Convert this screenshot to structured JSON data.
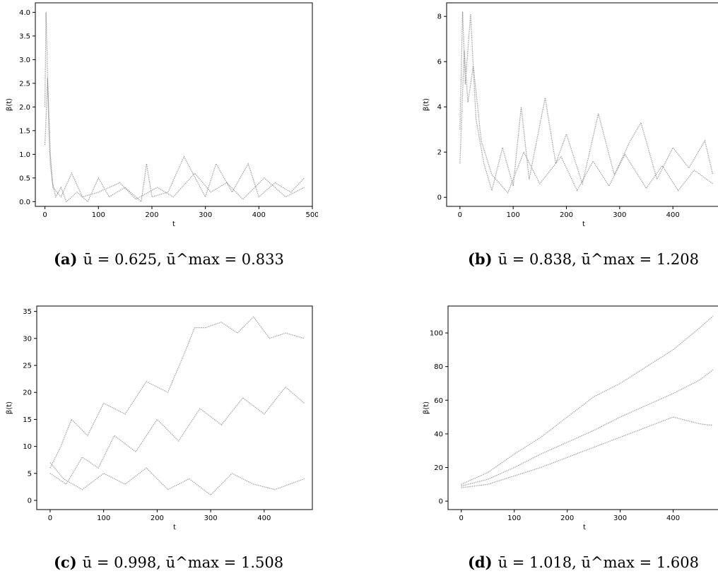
{
  "chart_data": [
    {
      "id": "a",
      "type": "line",
      "caption": {
        "tag": "(a)",
        "text": "ū = 0.625, ū^max = 0.833"
      },
      "xlabel": "t",
      "ylabel": "β(t)",
      "xlim": [
        -18,
        500
      ],
      "ylim": [
        -0.1,
        4.2
      ],
      "xticks": [
        0,
        100,
        200,
        300,
        400,
        500
      ],
      "yticks": [
        0.0,
        0.5,
        1.0,
        1.5,
        2.0,
        2.5,
        3.0,
        3.5,
        4.0
      ],
      "ytick_decimals": 1,
      "series": [
        {
          "t": [
            0,
            2,
            4,
            6,
            8,
            10,
            14,
            20,
            30,
            40,
            60,
            80,
            100,
            120,
            150,
            180,
            190,
            200,
            230,
            260,
            300,
            320,
            350,
            380,
            400,
            430,
            460,
            485
          ],
          "y": [
            2.0,
            4.0,
            3.1,
            2.0,
            1.3,
            0.8,
            0.4,
            0.1,
            0.3,
            0.0,
            0.2,
            0.0,
            0.5,
            0.1,
            0.3,
            0.0,
            0.8,
            0.1,
            0.2,
            0.95,
            0.1,
            0.8,
            0.2,
            0.8,
            0.1,
            0.4,
            0.2,
            0.5
          ]
        },
        {
          "t": [
            0,
            5,
            10,
            15,
            30,
            50,
            70,
            100,
            140,
            170,
            210,
            240,
            280,
            310,
            340,
            370,
            410,
            450,
            485
          ],
          "y": [
            1.2,
            2.6,
            1.0,
            0.3,
            0.1,
            0.6,
            0.1,
            0.2,
            0.4,
            0.05,
            0.3,
            0.1,
            0.6,
            0.2,
            0.4,
            0.05,
            0.5,
            0.1,
            0.3
          ]
        }
      ]
    },
    {
      "id": "b",
      "type": "line",
      "caption": {
        "tag": "(b)",
        "text": "ū = 0.838, ū^max = 1.208"
      },
      "xlabel": "t",
      "ylabel": "β(t)",
      "xlim": [
        -25,
        490
      ],
      "ylim": [
        -0.4,
        8.6
      ],
      "xticks": [
        0,
        100,
        200,
        300,
        400
      ],
      "yticks": [
        0,
        2,
        4,
        6,
        8
      ],
      "ytick_decimals": 0,
      "series": [
        {
          "t": [
            0,
            5,
            10,
            20,
            30,
            45,
            60,
            80,
            100,
            115,
            130,
            160,
            180,
            200,
            230,
            260,
            290,
            320,
            340,
            370,
            400,
            430,
            460,
            475
          ],
          "y": [
            3.0,
            8.2,
            5.0,
            8.1,
            3.5,
            1.5,
            0.3,
            2.2,
            0.5,
            4.0,
            0.8,
            4.4,
            1.5,
            2.8,
            0.6,
            3.7,
            1.0,
            2.5,
            3.3,
            0.8,
            2.2,
            1.3,
            2.5,
            1.0
          ]
        },
        {
          "t": [
            0,
            8,
            15,
            25,
            40,
            60,
            90,
            120,
            150,
            190,
            220,
            250,
            280,
            310,
            350,
            380,
            410,
            440,
            475
          ],
          "y": [
            1.5,
            6.5,
            4.2,
            5.8,
            2.5,
            1.0,
            0.2,
            2.0,
            0.6,
            1.8,
            0.3,
            1.6,
            0.5,
            1.9,
            0.4,
            1.4,
            0.3,
            1.2,
            0.6
          ]
        }
      ]
    },
    {
      "id": "c",
      "type": "line",
      "caption": {
        "tag": "(c)",
        "text": "ū = 0.998, ū^max = 1.508"
      },
      "xlabel": "t",
      "ylabel": "β(t)",
      "xlim": [
        -25,
        490
      ],
      "ylim": [
        -1.7,
        36
      ],
      "xticks": [
        0,
        100,
        200,
        300,
        400
      ],
      "yticks": [
        0,
        5,
        10,
        15,
        20,
        25,
        30,
        35
      ],
      "ytick_decimals": 0,
      "series": [
        {
          "t": [
            0,
            20,
            40,
            70,
            100,
            140,
            180,
            220,
            250,
            270,
            290,
            320,
            350,
            380,
            410,
            440,
            475
          ],
          "y": [
            6,
            10,
            15,
            12,
            18,
            16,
            22,
            20,
            27,
            32,
            32,
            33,
            31,
            34,
            30,
            31,
            30
          ]
        },
        {
          "t": [
            0,
            30,
            60,
            90,
            120,
            160,
            200,
            240,
            280,
            320,
            360,
            400,
            440,
            475
          ],
          "y": [
            5,
            3,
            8,
            6,
            12,
            9,
            15,
            11,
            17,
            14,
            19,
            16,
            21,
            18
          ]
        },
        {
          "t": [
            0,
            25,
            60,
            100,
            140,
            180,
            220,
            260,
            300,
            340,
            380,
            420,
            475
          ],
          "y": [
            7,
            4,
            2,
            5,
            3,
            6,
            2,
            4,
            1,
            5,
            3,
            2,
            4
          ]
        }
      ]
    },
    {
      "id": "d",
      "type": "line",
      "caption": {
        "tag": "(d)",
        "text": "ū = 1.018, ū^max = 1.608"
      },
      "xlabel": "t",
      "ylabel": "β(t)",
      "xlim": [
        -25,
        490
      ],
      "ylim": [
        -5,
        116
      ],
      "xticks": [
        0,
        100,
        200,
        300,
        400
      ],
      "yticks": [
        0,
        20,
        40,
        60,
        80,
        100
      ],
      "ytick_decimals": 0,
      "series": [
        {
          "t": [
            0,
            50,
            100,
            150,
            200,
            250,
            300,
            350,
            400,
            450,
            475
          ],
          "y": [
            10,
            17,
            28,
            38,
            50,
            62,
            70,
            80,
            90,
            103,
            110
          ]
        },
        {
          "t": [
            0,
            50,
            100,
            150,
            200,
            250,
            300,
            350,
            400,
            450,
            475
          ],
          "y": [
            9,
            13,
            20,
            28,
            35,
            42,
            50,
            57,
            64,
            72,
            78
          ]
        },
        {
          "t": [
            0,
            50,
            100,
            150,
            200,
            250,
            300,
            350,
            400,
            450,
            475
          ],
          "y": [
            8,
            10,
            15,
            20,
            26,
            32,
            38,
            44,
            50,
            46,
            45
          ]
        }
      ]
    }
  ]
}
